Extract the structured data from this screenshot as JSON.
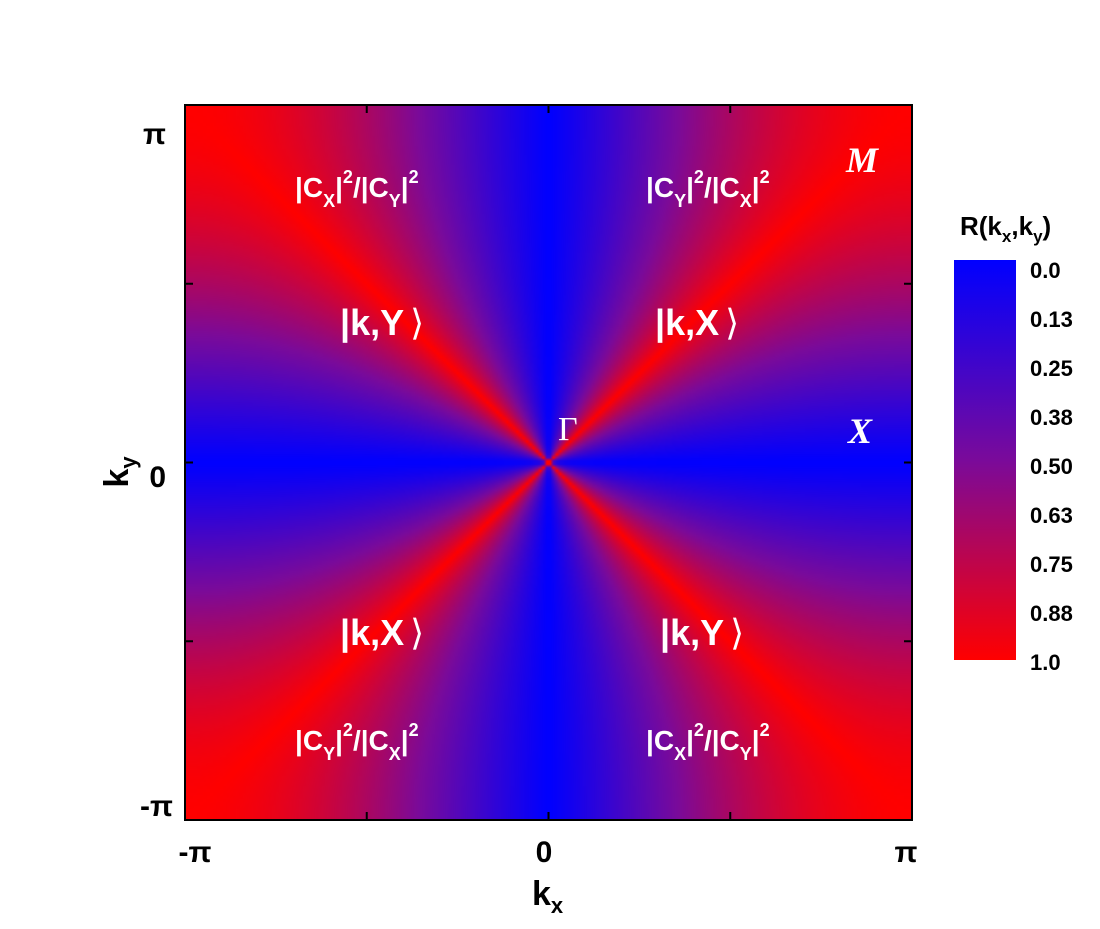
{
  "chart_data": {
    "type": "heatmap",
    "title": "",
    "xlabel": {
      "main": "k",
      "sub": "x"
    },
    "ylabel": {
      "main": "k",
      "sub": "y"
    },
    "xlim": [
      "-π",
      "π"
    ],
    "ylim": [
      "-π",
      "π"
    ],
    "x_ticks": [
      "-π",
      "0",
      "π"
    ],
    "y_ticks": [
      "-π",
      "0",
      "π"
    ],
    "colorbar": {
      "title": {
        "main": "R(k",
        "sub1": "x",
        "mid": ",k",
        "sub2": "y",
        "end": ")"
      },
      "ticks": [
        "0.0",
        "0.13",
        "0.25",
        "0.38",
        "0.50",
        "0.63",
        "0.75",
        "0.88",
        "1.0"
      ],
      "range": [
        0,
        1
      ],
      "color_low": "#0000ff",
      "color_high": "#ff0000"
    },
    "points": {
      "gamma": "Γ",
      "x": "X",
      "m": "M"
    },
    "states": {
      "top_left": "|k,Y",
      "top_right": "|k,X",
      "bottom_left": "|k,X",
      "bottom_right": "|k,Y",
      "ket_close": "⟩"
    },
    "ratios": {
      "top_left": {
        "a": "Y",
        "b": "X"
      },
      "top_right": {
        "a": "Y",
        "b": "X"
      },
      "bottom_left": {
        "a": "Y",
        "b": "X"
      },
      "bottom_right": {
        "a": "X",
        "b": "Y"
      }
    },
    "ratio_labels": {
      "top_left": {
        "n1": "X",
        "n2": "Y"
      },
      "top_right": {
        "n1": "Y",
        "n2": "X"
      },
      "bottom_left": {
        "n1": "Y",
        "n2": "X"
      },
      "bottom_right": {
        "n1": "X",
        "n2": "Y"
      }
    },
    "ratio_parts": {
      "c": "C",
      "bar": "|",
      "slash": "/",
      "exp": "2"
    }
  }
}
